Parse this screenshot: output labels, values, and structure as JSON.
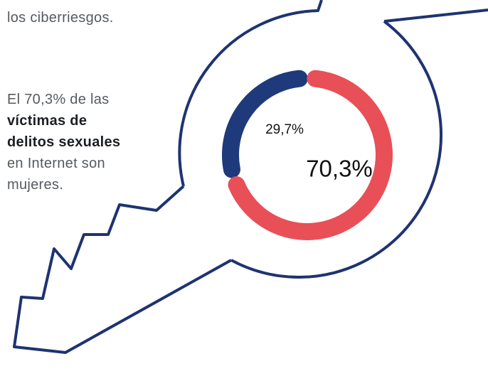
{
  "intro": "los ciberriesgos.",
  "caption": {
    "before": "El 70,3% de las",
    "bold": [
      "víctimas de",
      "delitos sexuales"
    ],
    "after": [
      "en Internet son",
      "mujeres."
    ]
  },
  "chart_data": {
    "type": "donut",
    "values": [
      29.7,
      70.3
    ],
    "value_labels": [
      "29,7%",
      "70,3%"
    ],
    "colors": [
      "#1e3a7a",
      "#e84f57"
    ]
  }
}
